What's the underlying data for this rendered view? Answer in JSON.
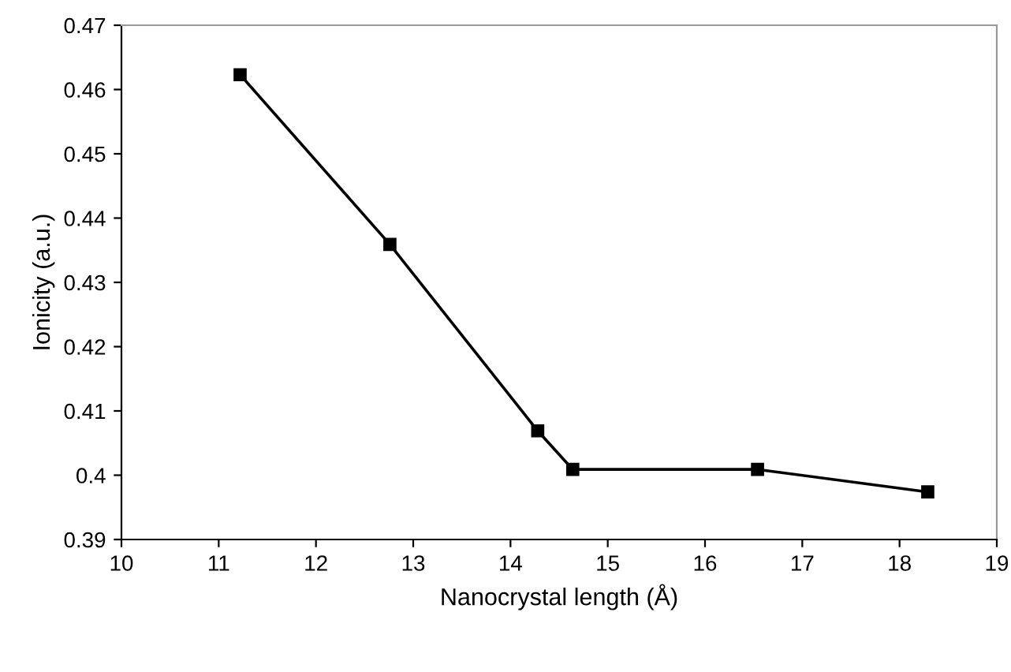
{
  "chart_data": {
    "type": "line",
    "xlabel": "Nanocrystal length (Å)",
    "ylabel": "Ionicity (a.u.)",
    "x": [
      11.22,
      12.76,
      14.28,
      14.64,
      16.54,
      18.29
    ],
    "series": [
      {
        "color": "#000000",
        "values": [
          0.4623,
          0.4359,
          0.4069,
          0.4009,
          0.4009,
          0.3974
        ]
      }
    ],
    "xlim": [
      10,
      19
    ],
    "xticks": [
      10,
      11,
      12,
      13,
      14,
      15,
      16,
      17,
      18,
      19
    ],
    "ylim": [
      0.39,
      0.47
    ],
    "yticks": [
      0.39,
      0.4,
      0.41,
      0.42,
      0.43,
      0.44,
      0.45,
      0.46,
      0.47
    ],
    "marker": "square",
    "line_style": "solid",
    "grid": false,
    "legend": false
  }
}
